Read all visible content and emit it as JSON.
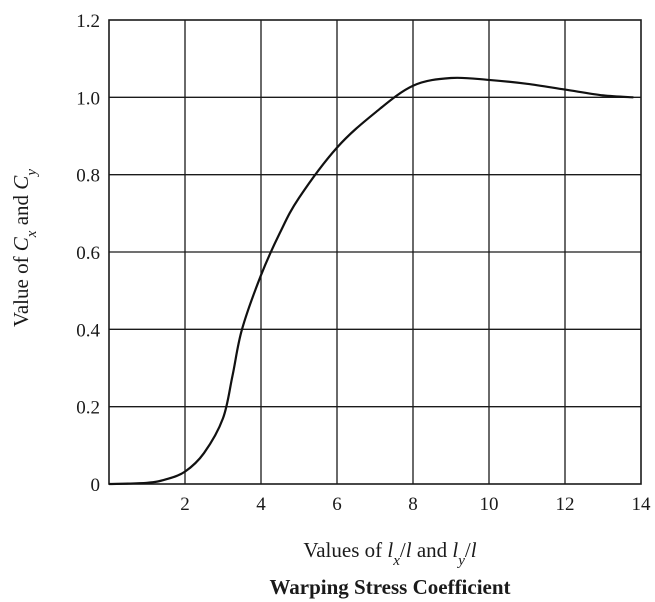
{
  "chart_data": {
    "type": "line",
    "title": "Warping Stress Coefficient",
    "xlabel": "Values of l_x/l and l_y/l",
    "ylabel": "Value of C_x and C_y",
    "xlim": [
      0,
      14
    ],
    "ylim": [
      0,
      1.2
    ],
    "xticks": [
      2,
      4,
      6,
      8,
      10,
      12,
      14
    ],
    "xtick_labels": [
      "2",
      "4",
      "6",
      "8",
      "10",
      "12",
      "14"
    ],
    "yticks": [
      0,
      0.2,
      0.4,
      0.6,
      0.8,
      1.0,
      1.2
    ],
    "ytick_labels": [
      "0",
      "0.2",
      "0.4",
      "0.6",
      "0.8",
      "1.0",
      "1.2"
    ],
    "grid": true,
    "series": [
      {
        "x": [
          0,
          1,
          1.5,
          2,
          2.5,
          3,
          3.25,
          3.5,
          4,
          4.5,
          5,
          6,
          7,
          8,
          9,
          10,
          11,
          12,
          13,
          13.8
        ],
        "y": [
          0,
          0.003,
          0.012,
          0.032,
          0.08,
          0.17,
          0.28,
          0.4,
          0.54,
          0.65,
          0.74,
          0.87,
          0.96,
          1.03,
          1.05,
          1.045,
          1.035,
          1.02,
          1.005,
          1.0
        ]
      }
    ]
  }
}
